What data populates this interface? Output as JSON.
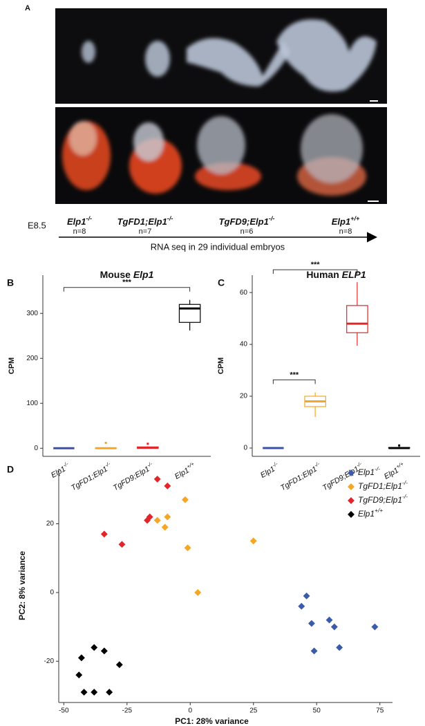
{
  "panel_a": {
    "label": "A",
    "stage": "E8.5",
    "genotypes": [
      "Elp1-/-",
      "TgFD1;Elp1-/-",
      "TgFD9;Elp1-/-",
      "Elp1+/+"
    ],
    "counts": [
      "n=8",
      "n=7",
      "n=6",
      "n=8"
    ],
    "arrow_text": "RNA seq in 29 individual embryos"
  },
  "chart_data": [
    {
      "type": "box",
      "label": "B",
      "title": "Mouse Elp1",
      "ylabel": "CPM",
      "categories": [
        "Elp1-/-",
        "TgFD1;Elp1-/-",
        "TgFD9;Elp1-/-",
        "Elp1+/+"
      ],
      "colors": [
        "#3a4fa8",
        "#f5a623",
        "#e0262b",
        "#000000"
      ],
      "stats": [
        [
          0,
          0,
          0,
          0,
          0
        ],
        [
          0,
          0,
          0,
          0.5,
          1
        ],
        [
          0,
          0,
          1,
          3,
          4
        ],
        [
          262,
          280,
          311,
          320,
          330
        ]
      ],
      "outliers": [
        [],
        [
          12
        ],
        [
          10
        ],
        []
      ],
      "ylim": [
        -18,
        385
      ],
      "yticks": [
        0,
        100,
        200,
        300
      ],
      "annotations": [
        {
          "text": "***",
          "from": 0,
          "to": 3
        }
      ]
    },
    {
      "type": "box",
      "label": "C",
      "title": "Human ELP1",
      "ylabel": "CPM",
      "categories": [
        "Elp1-/-",
        "TgFD1;Elp1-/-",
        "TgFD9;Elp1-/-",
        "Elp1+/+"
      ],
      "colors": [
        "#3a4fa8",
        "#f5a623",
        "#e0262b",
        "#000000"
      ],
      "stats": [
        [
          0,
          0,
          0,
          0,
          0
        ],
        [
          12,
          16,
          18,
          20,
          21.5
        ],
        [
          39.5,
          44.5,
          48,
          55,
          64
        ],
        [
          0,
          0,
          0,
          0.2,
          0.5
        ]
      ],
      "outliers": [
        [],
        [],
        [],
        [
          1
        ]
      ],
      "ylim": [
        -3.2,
        66.7
      ],
      "yticks": [
        0,
        20,
        40,
        60
      ],
      "annotations": [
        {
          "text": "***",
          "from": 0,
          "to": 2
        },
        {
          "text": "***",
          "from": 0,
          "to": 1
        }
      ]
    },
    {
      "type": "scatter",
      "label": "D",
      "xlabel": "PC1: 28% variance",
      "ylabel": "PC2: 8% variance",
      "xlim": [
        -52,
        80
      ],
      "xticks": [
        -50,
        -25,
        0,
        25,
        50,
        75
      ],
      "ylim": [
        -32,
        36
      ],
      "yticks": [
        -20,
        0,
        20
      ],
      "series": [
        {
          "name": "Elp1-/-",
          "color": "#3a5ba8",
          "x": [
            44,
            46,
            48,
            49,
            55,
            57,
            59,
            73
          ],
          "values": [
            -4,
            -1,
            -9,
            -17,
            -8,
            -10,
            -16,
            -10
          ]
        },
        {
          "name": "TgFD1;Elp1-/-",
          "color": "#f5a623",
          "x": [
            -13,
            -10,
            -9,
            -2,
            -1,
            3,
            25
          ],
          "values": [
            21,
            19,
            22,
            27,
            13,
            0,
            15
          ]
        },
        {
          "name": "TgFD9;Elp1-/-",
          "color": "#e0262b",
          "x": [
            -34,
            -27,
            -17,
            -16,
            -13,
            -9
          ],
          "values": [
            17,
            14,
            21,
            22,
            33,
            31
          ]
        },
        {
          "name": "Elp1+/+",
          "color": "#000000",
          "x": [
            -44,
            -43,
            -42,
            -38,
            -38,
            -34,
            -32,
            -28
          ],
          "values": [
            -24,
            -19,
            -29,
            -16,
            -29,
            -17,
            -29,
            -21
          ]
        }
      ]
    }
  ]
}
